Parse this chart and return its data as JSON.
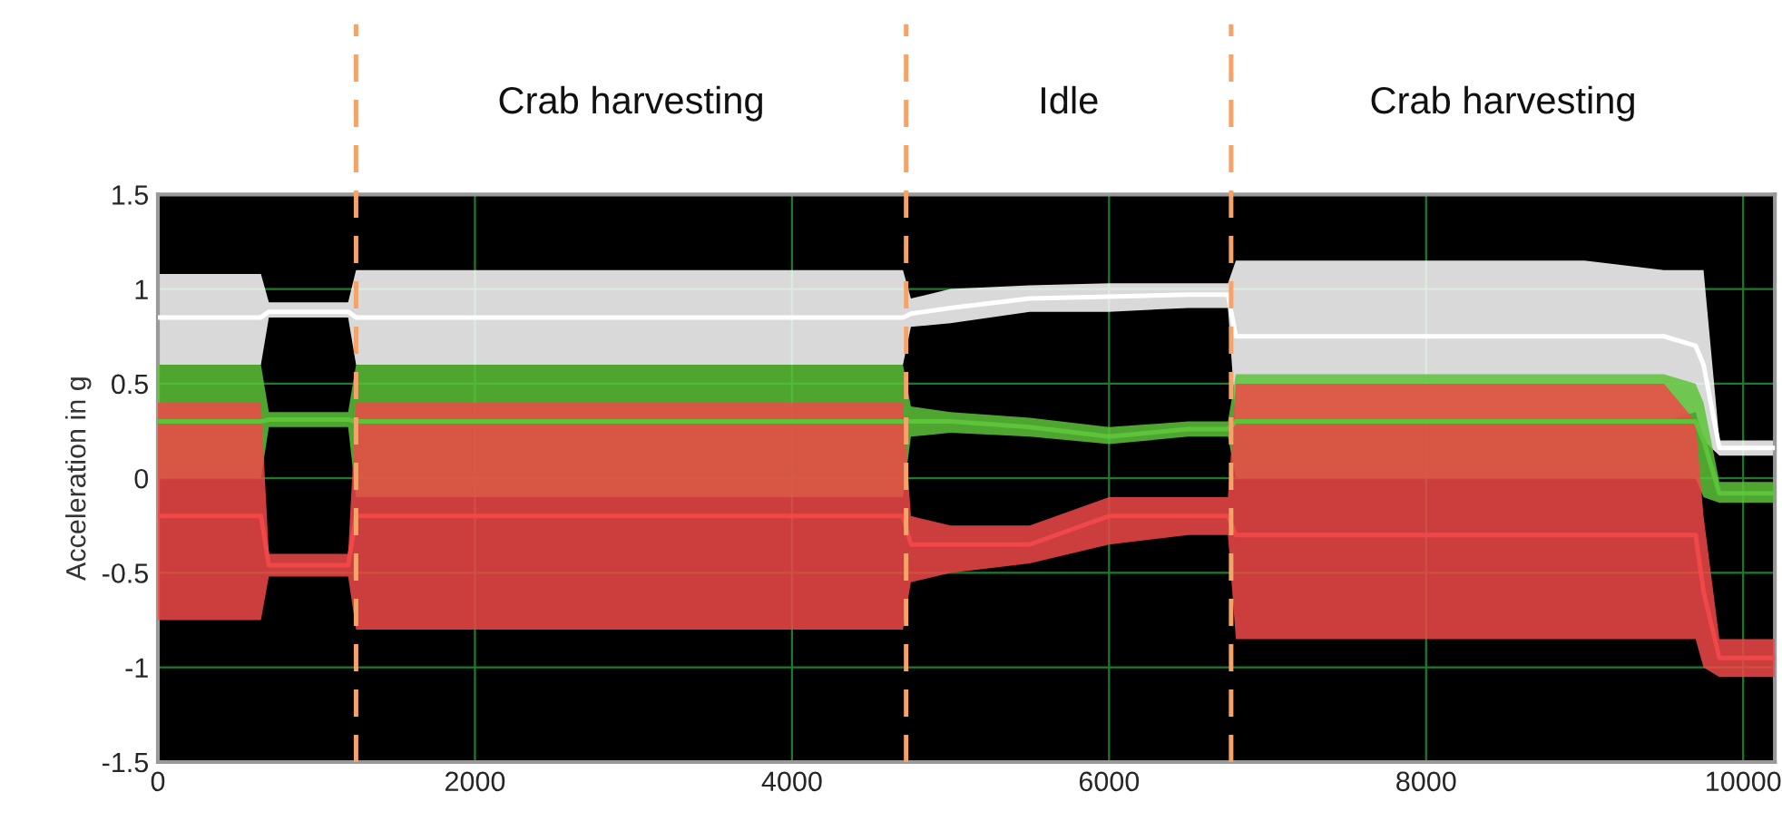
{
  "chart_data": {
    "type": "line",
    "ylabel": "Acceleration in g",
    "x": [
      0,
      300,
      650,
      700,
      1000,
      1200,
      1250,
      1500,
      2000,
      2500,
      3000,
      3500,
      4000,
      4500,
      4700,
      4750,
      5000,
      5500,
      6000,
      6500,
      6750,
      6800,
      7500,
      8000,
      8500,
      9000,
      9500,
      9700,
      9750,
      9850,
      10000,
      10200
    ],
    "series": [
      {
        "color": "#ffffff",
        "values": [
          0.85,
          0.85,
          0.85,
          0.88,
          0.88,
          0.88,
          0.85,
          0.85,
          0.85,
          0.85,
          0.85,
          0.85,
          0.85,
          0.85,
          0.85,
          0.87,
          0.9,
          0.95,
          0.96,
          0.97,
          0.97,
          0.75,
          0.75,
          0.75,
          0.75,
          0.75,
          0.75,
          0.7,
          0.6,
          0.16,
          0.16,
          0.16
        ],
        "lower": [
          0.6,
          0.6,
          0.6,
          0.85,
          0.85,
          0.85,
          0.6,
          0.6,
          0.6,
          0.6,
          0.6,
          0.6,
          0.6,
          0.6,
          0.6,
          0.8,
          0.82,
          0.88,
          0.88,
          0.9,
          0.9,
          0.3,
          0.3,
          0.3,
          0.3,
          0.3,
          0.3,
          0.35,
          0.2,
          0.12,
          0.12,
          0.12
        ],
        "upper": [
          1.08,
          1.08,
          1.08,
          0.93,
          0.93,
          0.93,
          1.1,
          1.1,
          1.1,
          1.1,
          1.1,
          1.1,
          1.1,
          1.1,
          1.1,
          0.95,
          1.0,
          1.02,
          1.03,
          1.03,
          1.03,
          1.15,
          1.15,
          1.15,
          1.15,
          1.15,
          1.1,
          1.1,
          1.1,
          0.2,
          0.2,
          0.2
        ]
      },
      {
        "color": "#5cc33a",
        "values": [
          0.3,
          0.3,
          0.3,
          0.31,
          0.31,
          0.31,
          0.3,
          0.3,
          0.3,
          0.3,
          0.3,
          0.3,
          0.3,
          0.3,
          0.3,
          0.3,
          0.3,
          0.27,
          0.22,
          0.26,
          0.26,
          0.3,
          0.3,
          0.3,
          0.3,
          0.3,
          0.3,
          0.3,
          0.2,
          -0.08,
          -0.08,
          -0.08
        ],
        "lower": [
          0.0,
          0.0,
          0.0,
          0.27,
          0.27,
          0.27,
          -0.1,
          -0.1,
          -0.1,
          -0.1,
          -0.1,
          -0.1,
          -0.1,
          -0.1,
          -0.1,
          0.22,
          0.24,
          0.22,
          0.18,
          0.22,
          0.22,
          0.0,
          0.0,
          0.0,
          0.0,
          0.0,
          0.0,
          0.0,
          -0.1,
          -0.13,
          -0.13,
          -0.13
        ],
        "upper": [
          0.6,
          0.6,
          0.6,
          0.35,
          0.35,
          0.35,
          0.6,
          0.6,
          0.6,
          0.6,
          0.6,
          0.6,
          0.6,
          0.6,
          0.6,
          0.38,
          0.35,
          0.32,
          0.27,
          0.3,
          0.3,
          0.55,
          0.55,
          0.55,
          0.55,
          0.55,
          0.55,
          0.5,
          0.4,
          -0.02,
          -0.02,
          -0.02
        ]
      },
      {
        "color": "#f04848",
        "values": [
          -0.2,
          -0.2,
          -0.2,
          -0.46,
          -0.46,
          -0.46,
          -0.2,
          -0.2,
          -0.2,
          -0.2,
          -0.2,
          -0.2,
          -0.2,
          -0.2,
          -0.2,
          -0.35,
          -0.35,
          -0.35,
          -0.2,
          -0.2,
          -0.2,
          -0.3,
          -0.3,
          -0.3,
          -0.3,
          -0.3,
          -0.3,
          -0.3,
          -0.6,
          -0.95,
          -0.95,
          -0.95
        ],
        "lower": [
          -0.75,
          -0.75,
          -0.75,
          -0.52,
          -0.52,
          -0.52,
          -0.8,
          -0.8,
          -0.8,
          -0.8,
          -0.8,
          -0.8,
          -0.8,
          -0.8,
          -0.8,
          -0.55,
          -0.5,
          -0.45,
          -0.35,
          -0.3,
          -0.3,
          -0.85,
          -0.85,
          -0.85,
          -0.85,
          -0.85,
          -0.85,
          -0.85,
          -1.0,
          -1.05,
          -1.05,
          -1.05
        ],
        "upper": [
          0.4,
          0.4,
          0.4,
          -0.4,
          -0.4,
          -0.4,
          0.4,
          0.4,
          0.4,
          0.4,
          0.4,
          0.4,
          0.4,
          0.4,
          0.4,
          -0.2,
          -0.25,
          -0.25,
          -0.1,
          -0.1,
          -0.1,
          0.5,
          0.5,
          0.5,
          0.5,
          0.5,
          0.5,
          0.3,
          -0.2,
          -0.85,
          -0.85,
          -0.85
        ]
      }
    ],
    "xlim": [
      0,
      10200
    ],
    "xticks": [
      0,
      2000,
      4000,
      6000,
      8000,
      10000
    ],
    "ylim": [
      -1.5,
      1.5
    ],
    "yticks": [
      -1.5,
      -1,
      -0.5,
      0,
      0.5,
      1,
      1.5
    ],
    "grid": true,
    "legend": false,
    "ref_lines": [
      {
        "axis": "x",
        "value": 1250,
        "color": "#f4a46a",
        "line_style": "dashed"
      },
      {
        "axis": "x",
        "value": 4720,
        "color": "#f4a46a",
        "line_style": "dashed"
      },
      {
        "axis": "x",
        "value": 6770,
        "color": "#f4a46a",
        "line_style": "dashed"
      }
    ],
    "annotations": [
      "Crab harvesting",
      "Idle",
      "Crab harvesting"
    ]
  }
}
